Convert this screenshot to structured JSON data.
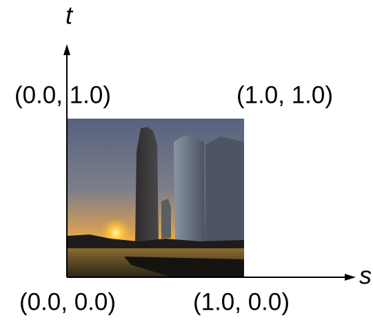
{
  "axes": {
    "vertical": "t",
    "horizontal": "s"
  },
  "corners": {
    "top_left": "(0.0, 1.0)",
    "top_right": "(1.0, 1.0)",
    "bottom_left": "(0.0, 0.0)",
    "bottom_right": "(1.0, 0.0)"
  }
}
